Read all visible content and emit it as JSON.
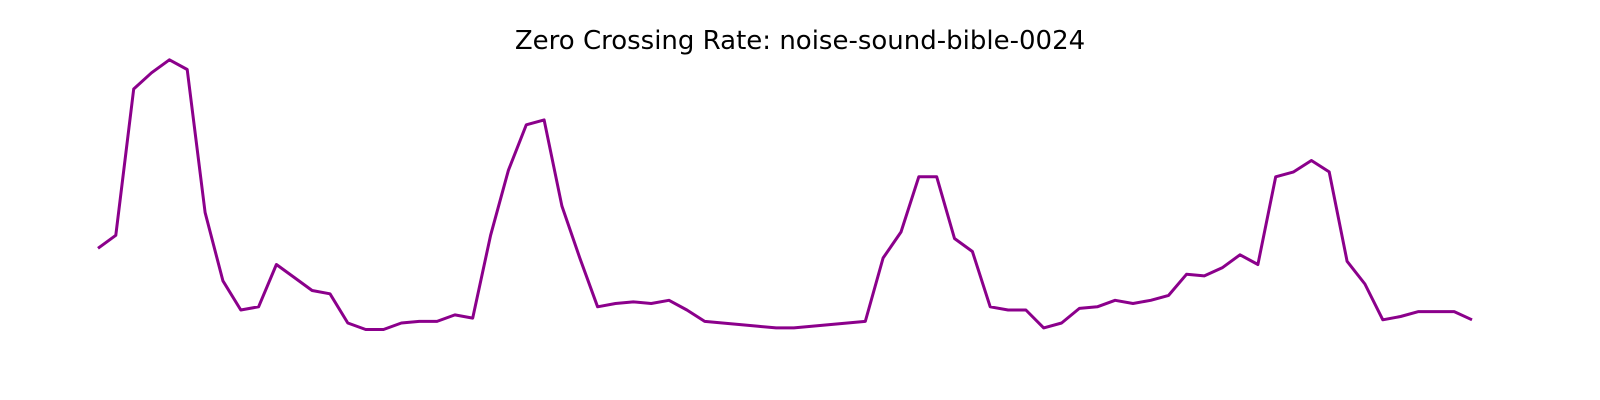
{
  "chart_data": {
    "type": "line",
    "title": "Zero Crossing Rate: noise-sound-bible-0024",
    "xlabel": "",
    "ylabel": "",
    "axes_visible": false,
    "grid": false,
    "legend": "none",
    "line_color": "#8b008b",
    "ylim": [
      0,
      100
    ],
    "series": [
      {
        "values": [
          39,
          43,
          88,
          93,
          97,
          94,
          50,
          29,
          20,
          21,
          34,
          30,
          26,
          25,
          16,
          14,
          14,
          16,
          16.5,
          16.5,
          18.5,
          17.5,
          43,
          63,
          77,
          78.5,
          52,
          36,
          21,
          22,
          22.5,
          22,
          23,
          20,
          16.5,
          16,
          15.5,
          15,
          14.5,
          14.5,
          15,
          15.5,
          16,
          16.5,
          36,
          44,
          61,
          61,
          42,
          38,
          21,
          20,
          20,
          14.5,
          16,
          20.5,
          21,
          23,
          22,
          23,
          24.5,
          31,
          30.5,
          33,
          37,
          34,
          61,
          62.5,
          66,
          62.5,
          35,
          28,
          17,
          18,
          19.5,
          19.5,
          19.5,
          17
        ]
      }
    ]
  }
}
